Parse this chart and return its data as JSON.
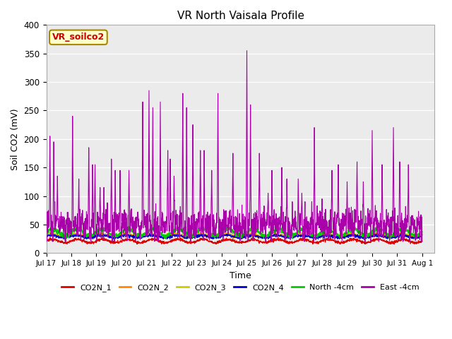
{
  "title": "VR North Vaisala Profile",
  "xlabel": "Time",
  "ylabel": "Soil CO2 (mV)",
  "ylim": [
    0,
    400
  ],
  "background_color": "#ebebeb",
  "annotation_text": "VR_soilco2",
  "annotation_color": "#cc0000",
  "annotation_bg": "#ffffcc",
  "annotation_border": "#aa8800",
  "xtick_labels": [
    "Jul 17",
    "Jul 18",
    "Jul 19",
    "Jul 20",
    "Jul 21",
    "Jul 22",
    "Jul 23",
    "Jul 24",
    "Jul 25",
    "Jul 26",
    "Jul 27",
    "Jul 28",
    "Jul 29",
    "Jul 30",
    "Jul 31",
    "Aug 1"
  ],
  "series_colors": {
    "CO2N_1": "#dd0000",
    "CO2N_2": "#ff8800",
    "CO2N_3": "#cccc00",
    "CO2N_4": "#0000cc",
    "North_4cm": "#00cc00",
    "East_4cm": "#aa00aa"
  },
  "legend_labels": [
    "CO2N_1",
    "CO2N_2",
    "CO2N_3",
    "CO2N_4",
    "North -4cm",
    "East -4cm"
  ],
  "yticks": [
    0,
    50,
    100,
    150,
    200,
    250,
    300,
    350,
    400
  ],
  "figsize": [
    6.4,
    4.8
  ],
  "dpi": 100
}
